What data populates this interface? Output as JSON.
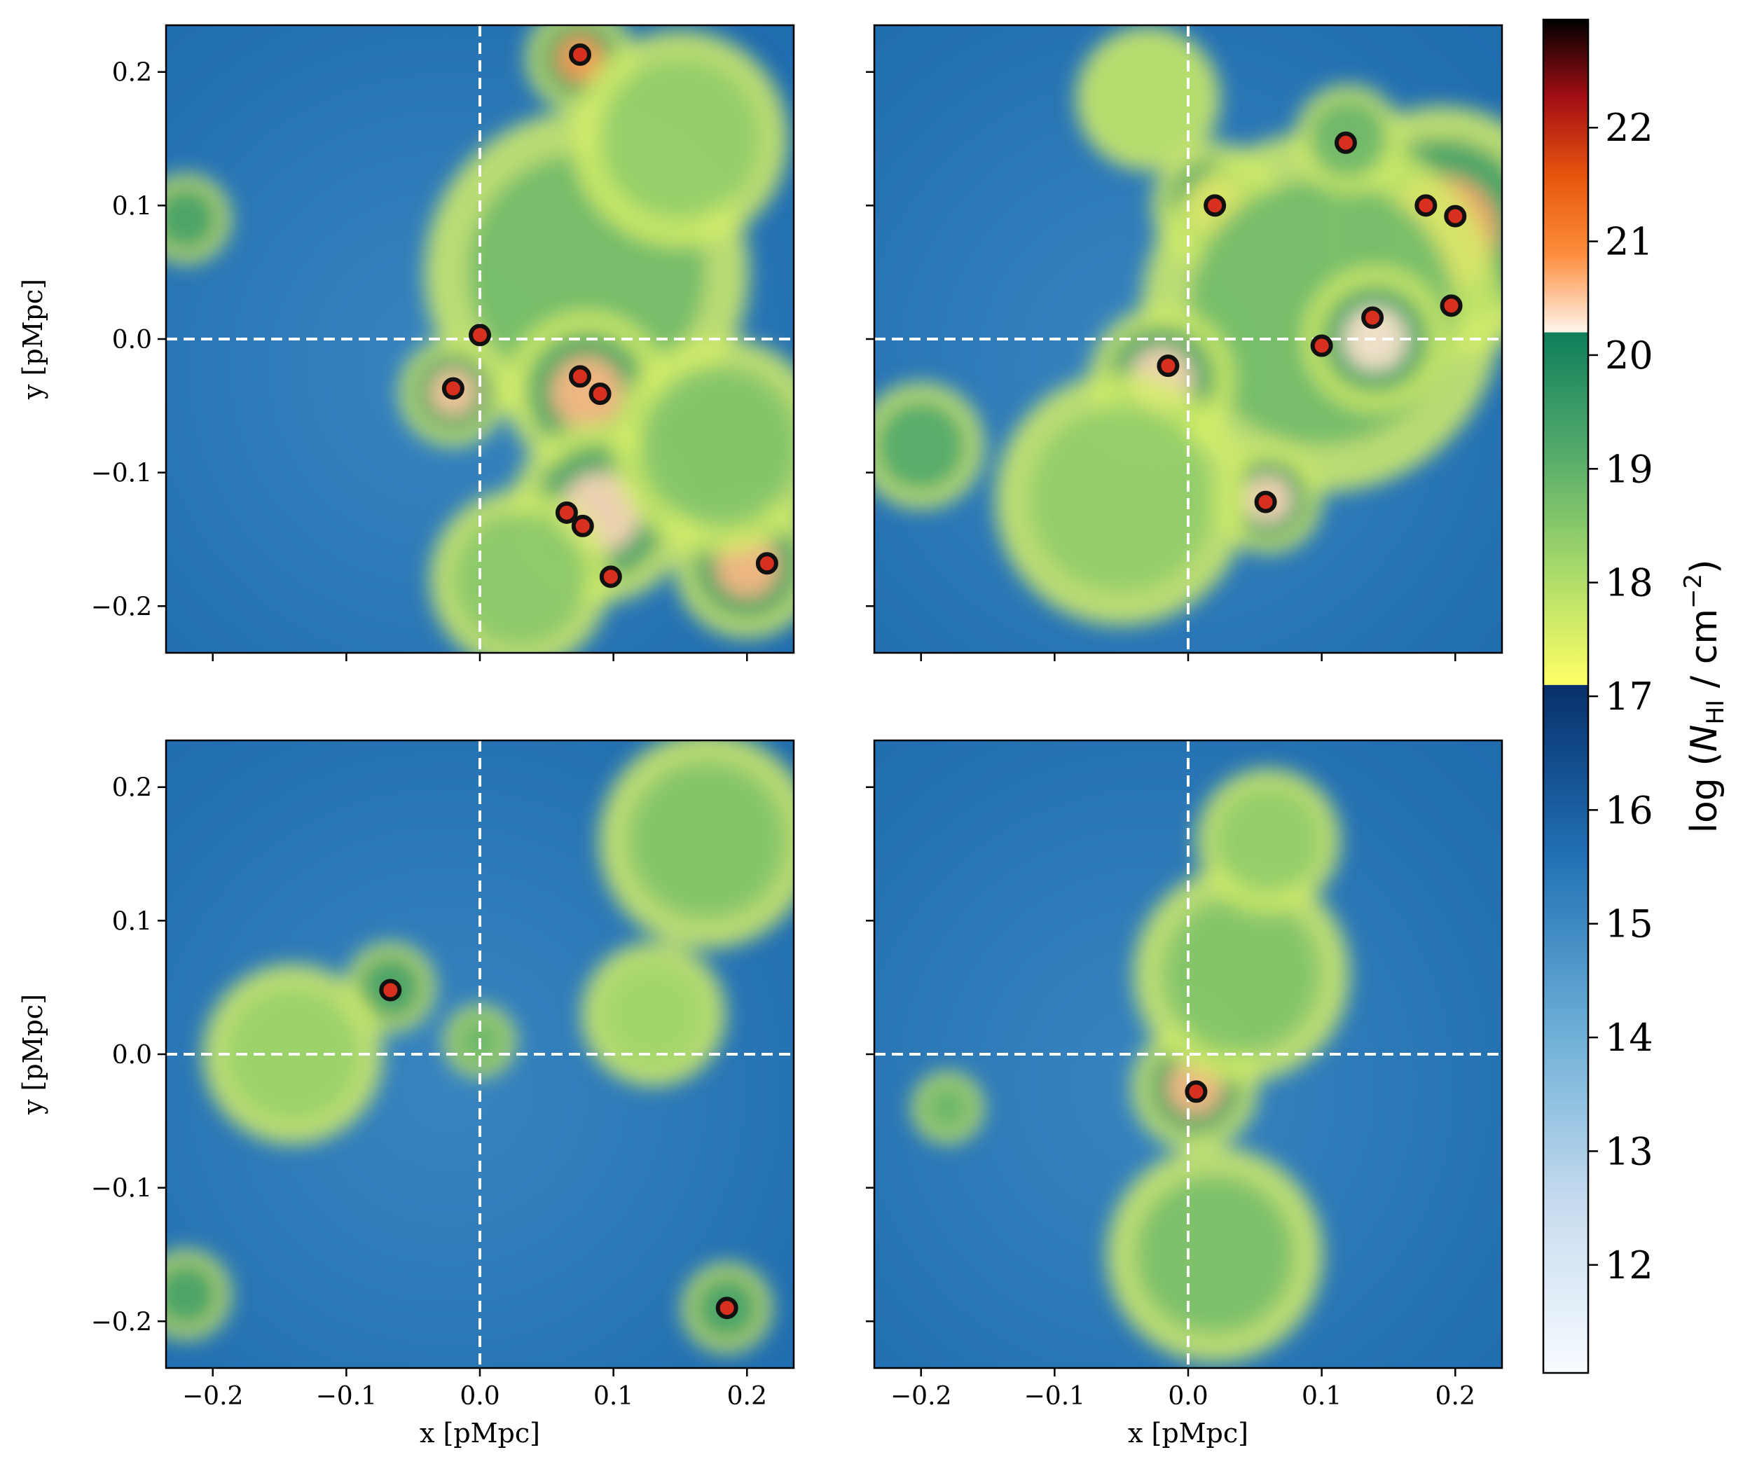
{
  "chart_data": {
    "type": "heatmap",
    "panels": [
      {
        "id": "top-left",
        "xlim": [
          -0.235,
          0.235
        ],
        "ylim": [
          -0.235,
          0.235
        ],
        "xticks": [
          -0.2,
          -0.1,
          0.0,
          0.1,
          0.2
        ],
        "yticks": [
          -0.2,
          -0.1,
          0.0,
          0.1,
          0.2
        ],
        "xlabel": "",
        "ylabel": "y [pMpc]",
        "show_xticklabels": false,
        "show_yticklabels": true,
        "crosshair": [
          0.0,
          0.0
        ],
        "markers": [
          [
            0.075,
            0.213
          ],
          [
            0.0,
            0.003
          ],
          [
            -0.02,
            -0.037
          ],
          [
            0.075,
            -0.028
          ],
          [
            0.09,
            -0.041
          ],
          [
            0.065,
            -0.13
          ],
          [
            0.077,
            -0.14
          ],
          [
            0.098,
            -0.178
          ],
          [
            0.215,
            -0.168
          ]
        ],
        "blobs": [
          {
            "x": 0.075,
            "y": 0.21,
            "r": 0.03,
            "v": 20.8
          },
          {
            "x": 0.08,
            "y": 0.05,
            "r": 0.09,
            "v": 18.8
          },
          {
            "x": 0.08,
            "y": -0.04,
            "r": 0.045,
            "v": 20.6
          },
          {
            "x": 0.09,
            "y": -0.13,
            "r": 0.05,
            "v": 20.4
          },
          {
            "x": -0.02,
            "y": -0.04,
            "r": 0.03,
            "v": 20.5
          },
          {
            "x": 0.2,
            "y": -0.17,
            "r": 0.04,
            "v": 20.6
          },
          {
            "x": 0.15,
            "y": 0.15,
            "r": 0.06,
            "v": 18.4
          },
          {
            "x": 0.18,
            "y": -0.08,
            "r": 0.06,
            "v": 18.6
          },
          {
            "x": -0.22,
            "y": 0.09,
            "r": 0.025,
            "v": 19.8
          },
          {
            "x": 0.03,
            "y": -0.18,
            "r": 0.05,
            "v": 18.5
          }
        ]
      },
      {
        "id": "top-right",
        "xlim": [
          -0.235,
          0.235
        ],
        "ylim": [
          -0.235,
          0.235
        ],
        "xticks": [
          -0.2,
          -0.1,
          0.0,
          0.1,
          0.2
        ],
        "yticks": [
          -0.2,
          -0.1,
          0.0,
          0.1,
          0.2
        ],
        "xlabel": "",
        "ylabel": "",
        "show_xticklabels": false,
        "show_yticklabels": false,
        "crosshair": [
          0.0,
          0.0
        ],
        "markers": [
          [
            0.02,
            0.1
          ],
          [
            0.118,
            0.147
          ],
          [
            0.178,
            0.1
          ],
          [
            0.2,
            0.092
          ],
          [
            0.197,
            0.025
          ],
          [
            0.138,
            0.016
          ],
          [
            0.1,
            -0.005
          ],
          [
            -0.015,
            -0.02
          ],
          [
            0.058,
            -0.122
          ]
        ],
        "blobs": [
          {
            "x": 0.02,
            "y": 0.1,
            "r": 0.035,
            "v": 20.7
          },
          {
            "x": 0.19,
            "y": 0.08,
            "r": 0.07,
            "v": 20.7
          },
          {
            "x": 0.1,
            "y": 0.02,
            "r": 0.1,
            "v": 18.8
          },
          {
            "x": -0.02,
            "y": -0.03,
            "r": 0.04,
            "v": 20.4
          },
          {
            "x": 0.06,
            "y": -0.12,
            "r": 0.03,
            "v": 20.4
          },
          {
            "x": -0.05,
            "y": -0.12,
            "r": 0.07,
            "v": 18.4
          },
          {
            "x": -0.2,
            "y": -0.08,
            "r": 0.035,
            "v": 19.2
          },
          {
            "x": 0.14,
            "y": 0.0,
            "r": 0.04,
            "v": 20.3
          },
          {
            "x": 0.12,
            "y": 0.15,
            "r": 0.03,
            "v": 18.9
          },
          {
            "x": -0.03,
            "y": 0.18,
            "r": 0.04,
            "v": 18.0
          }
        ]
      },
      {
        "id": "bottom-left",
        "xlim": [
          -0.235,
          0.235
        ],
        "ylim": [
          -0.235,
          0.235
        ],
        "xticks": [
          -0.2,
          -0.1,
          0.0,
          0.1,
          0.2
        ],
        "yticks": [
          -0.2,
          -0.1,
          0.0,
          0.1,
          0.2
        ],
        "xlabel": "x [pMpc]",
        "ylabel": "y [pMpc]",
        "show_xticklabels": true,
        "show_yticklabels": true,
        "crosshair": [
          0.0,
          0.0
        ],
        "markers": [
          [
            -0.067,
            0.048
          ],
          [
            0.185,
            -0.19
          ]
        ],
        "blobs": [
          {
            "x": -0.067,
            "y": 0.05,
            "r": 0.025,
            "v": 20.2
          },
          {
            "x": -0.14,
            "y": 0.0,
            "r": 0.05,
            "v": 18.3
          },
          {
            "x": 0.13,
            "y": 0.03,
            "r": 0.04,
            "v": 18.2
          },
          {
            "x": 0.17,
            "y": 0.16,
            "r": 0.06,
            "v": 18.6
          },
          {
            "x": 0.185,
            "y": -0.19,
            "r": 0.025,
            "v": 20.0
          },
          {
            "x": -0.22,
            "y": -0.18,
            "r": 0.025,
            "v": 19.5
          },
          {
            "x": 0.0,
            "y": 0.01,
            "r": 0.02,
            "v": 18.9
          }
        ]
      },
      {
        "id": "bottom-right",
        "xlim": [
          -0.235,
          0.235
        ],
        "ylim": [
          -0.235,
          0.235
        ],
        "xticks": [
          -0.2,
          -0.1,
          0.0,
          0.1,
          0.2
        ],
        "yticks": [
          -0.2,
          -0.1,
          0.0,
          0.1,
          0.2
        ],
        "xlabel": "x [pMpc]",
        "ylabel": "",
        "show_xticklabels": true,
        "show_yticklabels": false,
        "crosshair": [
          0.0,
          0.0
        ],
        "markers": [
          [
            0.006,
            -0.028
          ]
        ],
        "blobs": [
          {
            "x": 0.005,
            "y": -0.025,
            "r": 0.035,
            "v": 20.6
          },
          {
            "x": 0.04,
            "y": 0.06,
            "r": 0.06,
            "v": 18.6
          },
          {
            "x": 0.02,
            "y": -0.15,
            "r": 0.06,
            "v": 18.7
          },
          {
            "x": 0.06,
            "y": 0.16,
            "r": 0.04,
            "v": 18.4
          },
          {
            "x": -0.18,
            "y": -0.04,
            "r": 0.02,
            "v": 18.9
          }
        ]
      }
    ],
    "colorbar": {
      "label": "log (N_HI / cm^-2)",
      "label_parts": {
        "prefix": "log (",
        "N": "N",
        "sub": "HI",
        "mid": " / cm",
        "sup": "−2",
        "suffix": ")"
      },
      "vmin": 11.05,
      "vmax": 22.95,
      "ticks": [
        12,
        13,
        14,
        15,
        16,
        17,
        18,
        19,
        20,
        21,
        22
      ],
      "segments": [
        {
          "from": 11.05,
          "to": 17.1,
          "colors": [
            "#f7fbff",
            "#c6dbef",
            "#6baed6",
            "#2171b5",
            "#08306b"
          ]
        },
        {
          "from": 17.1,
          "to": 20.2,
          "colors": [
            "#ffff66",
            "#a6d96a",
            "#52a96a",
            "#0f7f5c"
          ]
        },
        {
          "from": 20.2,
          "to": 22.95,
          "colors": [
            "#fff5eb",
            "#fd8d3c",
            "#e6550d",
            "#a50f15",
            "#000000"
          ]
        }
      ]
    }
  }
}
